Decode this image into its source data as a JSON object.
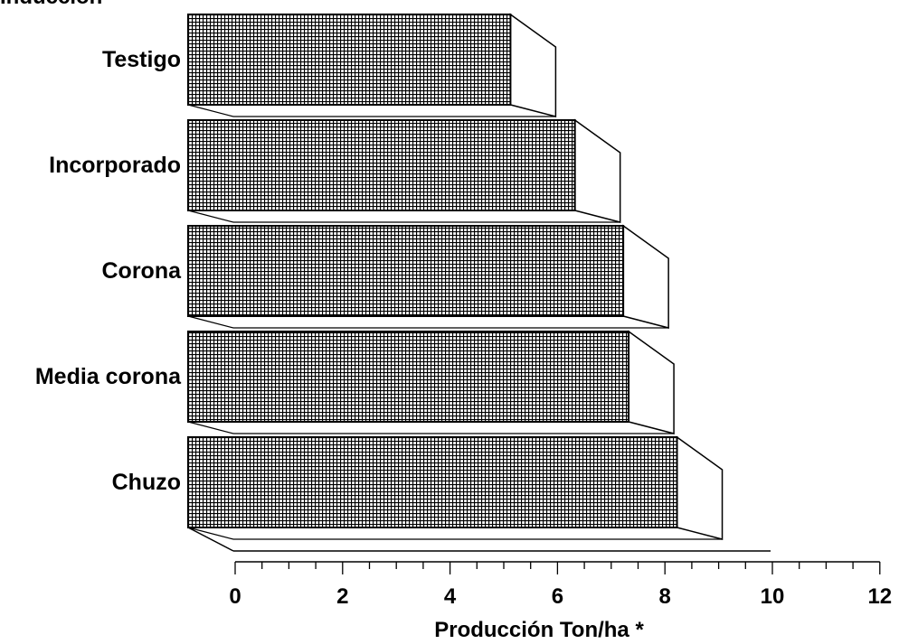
{
  "chart_data": {
    "type": "bar",
    "orientation": "horizontal",
    "style": "3d-hatched",
    "title": "Inducción",
    "categories": [
      "Testigo",
      "Incorporado",
      "Corona",
      "Media corona",
      "Chuzo"
    ],
    "values": [
      6.0,
      7.2,
      8.1,
      8.2,
      9.1
    ],
    "xlabel": "Producción Ton/ha *",
    "ylabel": "",
    "xlim": [
      0,
      12
    ],
    "xticks": [
      "0",
      "2",
      "4",
      "6",
      "8",
      "10",
      "12"
    ],
    "grid": false,
    "legend": "none",
    "colors": {
      "bar": "#000000",
      "background": "#ffffff"
    }
  }
}
